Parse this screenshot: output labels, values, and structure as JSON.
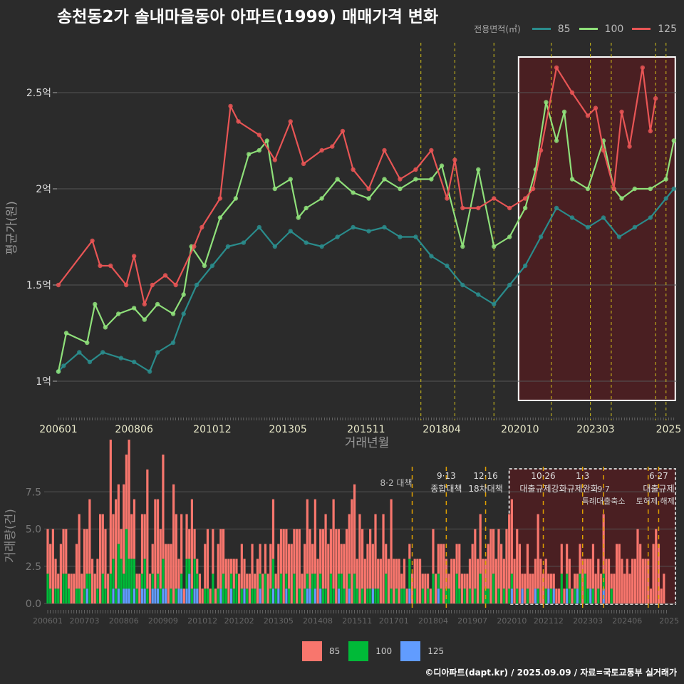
{
  "title": "송천동2가 솔내마을동아 아파트(1999) 매매가격 변화",
  "legend": {
    "title": "전용면적(㎡)",
    "items": [
      {
        "label": "85",
        "color": "#2a8c8c"
      },
      {
        "label": "100",
        "color": "#8fe07a"
      },
      {
        "label": "125",
        "color": "#e85555"
      }
    ]
  },
  "volume_legend": [
    {
      "label": "85",
      "color": "#f8766d"
    },
    {
      "label": "100",
      "color": "#00ba38"
    },
    {
      "label": "125",
      "color": "#619cff"
    }
  ],
  "footer": "©디아파트(dapt.kr) / 2025.09.09 / 자료=국토교통부 실거래가",
  "chart_data": [
    {
      "type": "line",
      "title": "송천동2가 솔내마을동아 아파트(1999) 매매가격 변화",
      "xlabel": "거래년월",
      "ylabel": "평균가(원)",
      "xlim": [
        "200601",
        "202509"
      ],
      "ylim": [
        0.82,
        2.72
      ],
      "yticks": [
        {
          "v": 1,
          "label": "1억"
        },
        {
          "v": 1.5,
          "label": "1.5억"
        },
        {
          "v": 2,
          "label": "2억"
        },
        {
          "v": 2.5,
          "label": "2.5억"
        }
      ],
      "xticks": [
        "200601",
        "200806",
        "201012",
        "201305",
        "201511",
        "201804",
        "202010",
        "202303",
        "2025"
      ],
      "highlight_range": [
        "202010",
        "202509"
      ],
      "series": [
        {
          "name": "85",
          "points": [
            [
              "200601",
              1.05
            ],
            [
              "200603",
              1.08
            ],
            [
              "200609",
              1.15
            ],
            [
              "200701",
              1.1
            ],
            [
              "200706",
              1.15
            ],
            [
              "200801",
              1.12
            ],
            [
              "200806",
              1.1
            ],
            [
              "200812",
              1.05
            ],
            [
              "200903",
              1.15
            ],
            [
              "200909",
              1.2
            ],
            [
              "201001",
              1.35
            ],
            [
              "201006",
              1.5
            ],
            [
              "201012",
              1.6
            ],
            [
              "201106",
              1.7
            ],
            [
              "201112",
              1.72
            ],
            [
              "201206",
              1.8
            ],
            [
              "201212",
              1.7
            ],
            [
              "201306",
              1.78
            ],
            [
              "201312",
              1.72
            ],
            [
              "201406",
              1.7
            ],
            [
              "201412",
              1.75
            ],
            [
              "201506",
              1.8
            ],
            [
              "201512",
              1.78
            ],
            [
              "201606",
              1.8
            ],
            [
              "201612",
              1.75
            ],
            [
              "201706",
              1.75
            ],
            [
              "201712",
              1.65
            ],
            [
              "201806",
              1.6
            ],
            [
              "201812",
              1.5
            ],
            [
              "201906",
              1.45
            ],
            [
              "201912",
              1.4
            ],
            [
              "202006",
              1.5
            ],
            [
              "202012",
              1.6
            ],
            [
              "202106",
              1.75
            ],
            [
              "202112",
              1.9
            ],
            [
              "202206",
              1.85
            ],
            [
              "202212",
              1.8
            ],
            [
              "202306",
              1.85
            ],
            [
              "202312",
              1.75
            ],
            [
              "202406",
              1.8
            ],
            [
              "202412",
              1.85
            ],
            [
              "202506",
              1.95
            ],
            [
              "202509",
              2.0
            ]
          ]
        },
        {
          "name": "100",
          "points": [
            [
              "200601",
              1.05
            ],
            [
              "200604",
              1.25
            ],
            [
              "200612",
              1.2
            ],
            [
              "200703",
              1.4
            ],
            [
              "200707",
              1.28
            ],
            [
              "200712",
              1.35
            ],
            [
              "200806",
              1.38
            ],
            [
              "200810",
              1.32
            ],
            [
              "200903",
              1.4
            ],
            [
              "200909",
              1.35
            ],
            [
              "201001",
              1.45
            ],
            [
              "201004",
              1.7
            ],
            [
              "201009",
              1.6
            ],
            [
              "201103",
              1.85
            ],
            [
              "201109",
              1.95
            ],
            [
              "201202",
              2.18
            ],
            [
              "201206",
              2.2
            ],
            [
              "201209",
              2.25
            ],
            [
              "201212",
              2.0
            ],
            [
              "201306",
              2.05
            ],
            [
              "201309",
              1.85
            ],
            [
              "201312",
              1.9
            ],
            [
              "201406",
              1.95
            ],
            [
              "201412",
              2.05
            ],
            [
              "201506",
              1.98
            ],
            [
              "201512",
              1.95
            ],
            [
              "201606",
              2.05
            ],
            [
              "201612",
              2.0
            ],
            [
              "201706",
              2.05
            ],
            [
              "201712",
              2.05
            ],
            [
              "201804",
              2.12
            ],
            [
              "201812",
              1.7
            ],
            [
              "201906",
              2.1
            ],
            [
              "201912",
              1.7
            ],
            [
              "202006",
              1.75
            ],
            [
              "202012",
              1.9
            ],
            [
              "202104",
              2.1
            ],
            [
              "202108",
              2.45
            ],
            [
              "202112",
              2.25
            ],
            [
              "202203",
              2.4
            ],
            [
              "202206",
              2.05
            ],
            [
              "202212",
              2.0
            ],
            [
              "202306",
              2.25
            ],
            [
              "202310",
              2.0
            ],
            [
              "202401",
              1.95
            ],
            [
              "202406",
              2.0
            ],
            [
              "202412",
              2.0
            ],
            [
              "202506",
              2.05
            ],
            [
              "202509",
              2.25
            ]
          ]
        },
        {
          "name": "125",
          "points": [
            [
              "200601",
              1.5
            ],
            [
              "200702",
              1.73
            ],
            [
              "200705",
              1.6
            ],
            [
              "200709",
              1.6
            ],
            [
              "200803",
              1.5
            ],
            [
              "200806",
              1.65
            ],
            [
              "200810",
              1.4
            ],
            [
              "200901",
              1.5
            ],
            [
              "200906",
              1.55
            ],
            [
              "200910",
              1.5
            ],
            [
              "201005",
              1.7
            ],
            [
              "201008",
              1.8
            ],
            [
              "201103",
              1.95
            ],
            [
              "201107",
              2.43
            ],
            [
              "201110",
              2.35
            ],
            [
              "201206",
              2.28
            ],
            [
              "201212",
              2.15
            ],
            [
              "201306",
              2.35
            ],
            [
              "201311",
              2.13
            ],
            [
              "201406",
              2.2
            ],
            [
              "201410",
              2.22
            ],
            [
              "201502",
              2.3
            ],
            [
              "201506",
              2.1
            ],
            [
              "201512",
              2.0
            ],
            [
              "201606",
              2.2
            ],
            [
              "201612",
              2.05
            ],
            [
              "201706",
              2.1
            ],
            [
              "201712",
              2.2
            ],
            [
              "201806",
              1.95
            ],
            [
              "201809",
              2.15
            ],
            [
              "201812",
              1.9
            ],
            [
              "201906",
              1.9
            ],
            [
              "201912",
              1.95
            ],
            [
              "202006",
              1.9
            ],
            [
              "202012",
              1.95
            ],
            [
              "202103",
              2.0
            ],
            [
              "202106",
              2.2
            ],
            [
              "202112",
              2.63
            ],
            [
              "202206",
              2.5
            ],
            [
              "202212",
              2.38
            ],
            [
              "202303",
              2.42
            ],
            [
              "202306",
              2.2
            ],
            [
              "202310",
              2.0
            ],
            [
              "202401",
              2.4
            ],
            [
              "202404",
              2.22
            ],
            [
              "202409",
              2.63
            ],
            [
              "202412",
              2.3
            ],
            [
              "202502",
              2.47
            ]
          ]
        }
      ],
      "events": [
        {
          "ym": "201708",
          "date": "8·2",
          "label": "대책"
        },
        {
          "ym": "201809",
          "date": "9·13",
          "label": "종합대책"
        },
        {
          "ym": "201912",
          "date": "12·16",
          "label": "18차대책"
        },
        {
          "ym": "202110",
          "date": "10·26",
          "label": "대출규제강화"
        },
        {
          "ym": "202301",
          "date": "1·3",
          "label": "규제완화"
        },
        {
          "ym": "202309",
          "date": "9·7",
          "label": "특례대출축소"
        },
        {
          "ym": "202502",
          "date": "",
          "label": "토허제 해제"
        },
        {
          "ym": "202506",
          "date": "6·27",
          "label": "대출규제"
        }
      ]
    },
    {
      "type": "bar",
      "stacked": true,
      "ylabel": "거래량(건)",
      "ylim": [
        0,
        9
      ],
      "yticks": [
        "0.0",
        "2.5",
        "5.0",
        "7.5"
      ],
      "xticks": [
        "200601",
        "200703",
        "200806",
        "200909",
        "201012",
        "201202",
        "201305",
        "201408",
        "201511",
        "201701",
        "201804",
        "201907",
        "202010",
        "202112",
        "202303",
        "202406",
        "2025"
      ],
      "start": "200601",
      "monthly_counts": {
        "85": "335214331223524353226442936426583412438226547343852413262121341313432312123212313222234133533435423542533454365323547626433435236236323121122331211322342133232122443432353344255534412322253221111121221112312232224331244323233543331454120",
        "100": "210110221001101120010210221331423210121010112001010102112100110201021011201010110102012102011020101102101110210121010210101101100201010110201001010201101100210101010201102010101101000100010010100020110102021010101001",
        "125": "000000000000000100000000010101110100110011101100001101201100000000100010000100000100001010010000000110101000000100010000000010000000000000100000000001000000000000000000000000000100010000100001010000100010000100001"
      }
    }
  ]
}
